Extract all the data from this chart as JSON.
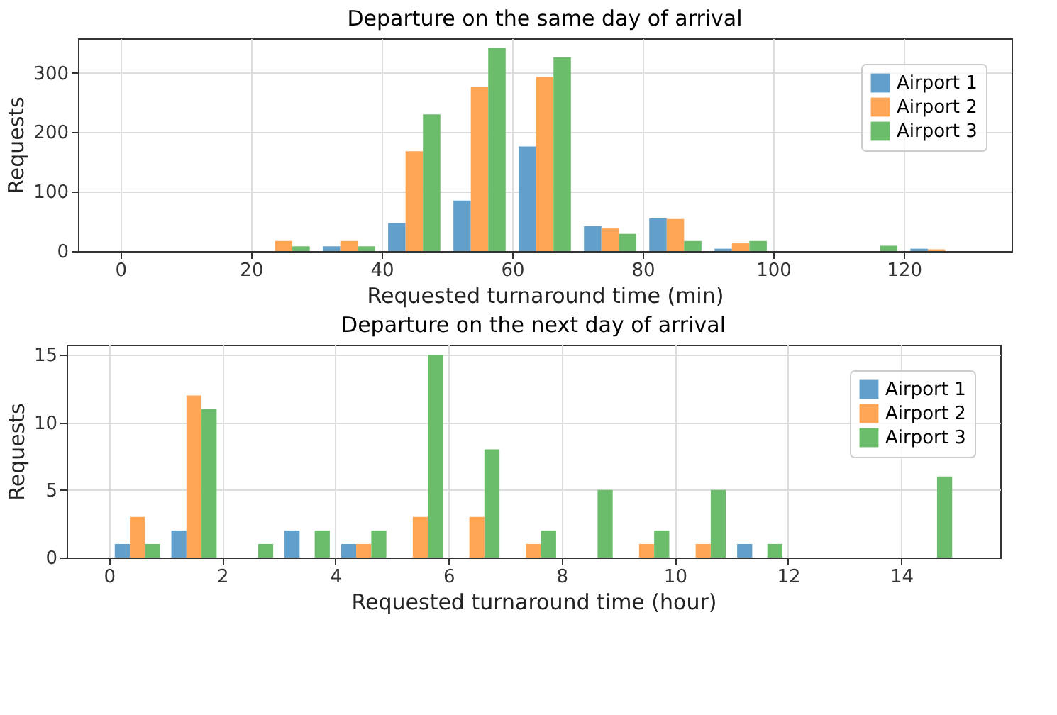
{
  "chart_data": [
    {
      "type": "histogram",
      "title": "Departure on the same day of arrival",
      "xlabel": "Requested turnaround time (min)",
      "ylabel": "Requests",
      "bins": [
        0,
        10,
        20,
        30,
        40,
        50,
        60,
        70,
        80,
        90,
        100,
        110,
        120,
        130
      ],
      "series": [
        {
          "name": "Airport 1",
          "color": "#629fca",
          "values": [
            0,
            0,
            0,
            8,
            47,
            85,
            176,
            42,
            55,
            4,
            0,
            0,
            4
          ]
        },
        {
          "name": "Airport 2",
          "color": "#ffa556",
          "values": [
            0,
            0,
            17,
            17,
            168,
            276,
            293,
            38,
            54,
            13,
            0,
            0,
            3
          ]
        },
        {
          "name": "Airport 3",
          "color": "#6bbc6b",
          "values": [
            0,
            0,
            8,
            8,
            230,
            342,
            326,
            29,
            17,
            17,
            0,
            9,
            0
          ]
        }
      ],
      "xlim": [
        -6.5,
        136.5
      ],
      "ylim": [
        0,
        358
      ],
      "xticks": [
        0,
        20,
        40,
        60,
        80,
        100,
        120
      ],
      "yticks": [
        0,
        100,
        200,
        300
      ],
      "grid": true,
      "legend": "top right"
    },
    {
      "type": "histogram",
      "title": "Departure on the next day of arrival",
      "xlabel": "Requested turnaround time (hour)",
      "ylabel": "Requests",
      "bins": [
        0,
        1,
        2,
        3,
        4,
        5,
        6,
        7,
        8,
        9,
        10,
        11,
        12,
        13,
        14,
        15
      ],
      "series": [
        {
          "name": "Airport 1",
          "color": "#629fca",
          "values": [
            1,
            2,
            0,
            2,
            1,
            0,
            0,
            0,
            0,
            0,
            0,
            1,
            0,
            0,
            0
          ]
        },
        {
          "name": "Airport 2",
          "color": "#ffa556",
          "values": [
            3,
            12,
            0,
            0,
            1,
            3,
            3,
            1,
            0,
            1,
            1,
            0,
            0,
            0,
            0
          ]
        },
        {
          "name": "Airport 3",
          "color": "#6bbc6b",
          "values": [
            1,
            11,
            1,
            2,
            2,
            15,
            8,
            2,
            5,
            2,
            5,
            1,
            0,
            0,
            6
          ]
        }
      ],
      "xlim": [
        -0.75,
        15.75
      ],
      "ylim": [
        0,
        15.75
      ],
      "xticks": [
        0,
        2,
        4,
        6,
        8,
        10,
        12,
        14
      ],
      "yticks": [
        0,
        5,
        10,
        15
      ],
      "grid": true,
      "legend": "top right"
    }
  ]
}
